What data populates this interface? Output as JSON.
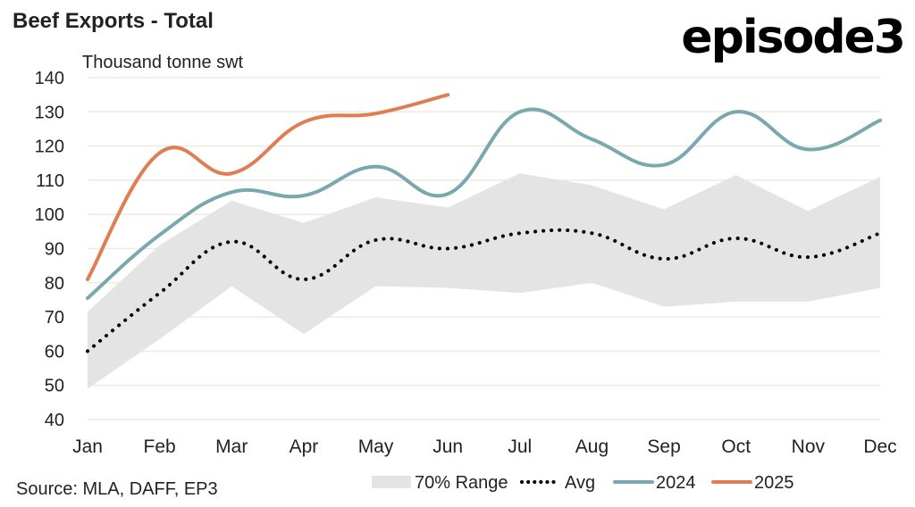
{
  "header": {
    "title": "Beef Exports - Total",
    "logo": "episode3"
  },
  "footer": {
    "source": "Source: MLA, DAFF, EP3"
  },
  "colors": {
    "range": "#e4e4e4",
    "avg": "#000000",
    "s2024": "#79a8ae",
    "s2025": "#de7e52",
    "grid": "#ecebe2"
  },
  "chart_data": {
    "type": "line",
    "title": "Beef Exports - Total",
    "ylabel": "Thousand tonne swt",
    "xlabel": "",
    "categories": [
      "Jan",
      "Feb",
      "Mar",
      "Apr",
      "May",
      "Jun",
      "Jul",
      "Aug",
      "Sep",
      "Oct",
      "Nov",
      "Dec"
    ],
    "ylim": [
      40,
      140
    ],
    "yticks": [
      40,
      50,
      60,
      70,
      80,
      90,
      100,
      110,
      120,
      130,
      140
    ],
    "grid": true,
    "legend_position": "bottom-right",
    "range": {
      "name": "70% Range",
      "upper": [
        71.5,
        91,
        104,
        97.5,
        105,
        102,
        112,
        108.5,
        101.5,
        111.5,
        101,
        111
      ],
      "lower": [
        49,
        63.5,
        79,
        65,
        79,
        78.5,
        77,
        80,
        73,
        74.5,
        74.5,
        78.5
      ]
    },
    "series": [
      {
        "name": "Avg",
        "style": "dotted",
        "values": [
          60,
          77,
          92,
          81,
          92.5,
          90,
          94.5,
          94.5,
          87,
          93,
          87.5,
          94.5
        ]
      },
      {
        "name": "2024",
        "style": "solid",
        "values": [
          75.5,
          94,
          106.5,
          105.5,
          114,
          106,
          130,
          122,
          114.5,
          130,
          119,
          127.5
        ]
      },
      {
        "name": "2025",
        "style": "solid",
        "values": [
          81,
          118,
          112,
          127,
          129.5,
          135,
          null,
          null,
          null,
          null,
          null,
          null
        ]
      }
    ],
    "legend": [
      "70% Range",
      "Avg",
      "2024",
      "2025"
    ]
  }
}
